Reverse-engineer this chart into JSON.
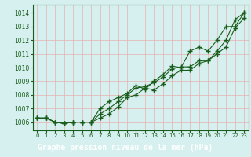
{
  "title": "Graphe pression niveau de la mer (hPa)",
  "bg_color": "#d6f0f0",
  "grid_color": "#e8b0b0",
  "line_color": "#1a5c1a",
  "xlabel_bg": "#2a6b2a",
  "xlabel_fg": "#ffffff",
  "xlim": [
    -0.5,
    23.5
  ],
  "ylim": [
    1005.4,
    1014.6
  ],
  "yticks": [
    1006,
    1007,
    1008,
    1009,
    1010,
    1011,
    1012,
    1013,
    1014
  ],
  "xticks": [
    0,
    1,
    2,
    3,
    4,
    5,
    6,
    7,
    8,
    9,
    10,
    11,
    12,
    13,
    14,
    15,
    16,
    17,
    18,
    19,
    20,
    21,
    22,
    23
  ],
  "line1": [
    1006.3,
    1006.3,
    1006.0,
    1005.9,
    1006.0,
    1006.0,
    1006.0,
    1006.3,
    1006.6,
    1007.1,
    1007.8,
    1008.0,
    1008.5,
    1008.35,
    1008.8,
    1009.4,
    1009.8,
    1009.8,
    1010.3,
    1010.5,
    1011.2,
    1012.0,
    1013.5,
    1014.0
  ],
  "line2": [
    1006.3,
    1006.3,
    1006.0,
    1005.9,
    1006.0,
    1006.0,
    1006.0,
    1006.6,
    1007.0,
    1007.5,
    1008.0,
    1008.5,
    1008.6,
    1008.9,
    1009.3,
    1009.9,
    1010.05,
    1010.05,
    1010.5,
    1010.5,
    1011.0,
    1011.5,
    1012.9,
    1013.6
  ],
  "line3": [
    1006.3,
    1006.3,
    1006.0,
    1005.9,
    1006.0,
    1006.0,
    1006.0,
    1007.0,
    1007.5,
    1007.8,
    1008.1,
    1008.7,
    1008.4,
    1009.0,
    1009.5,
    1010.1,
    1010.0,
    1011.2,
    1011.5,
    1011.2,
    1012.0,
    1013.0,
    1013.0,
    1014.0
  ]
}
